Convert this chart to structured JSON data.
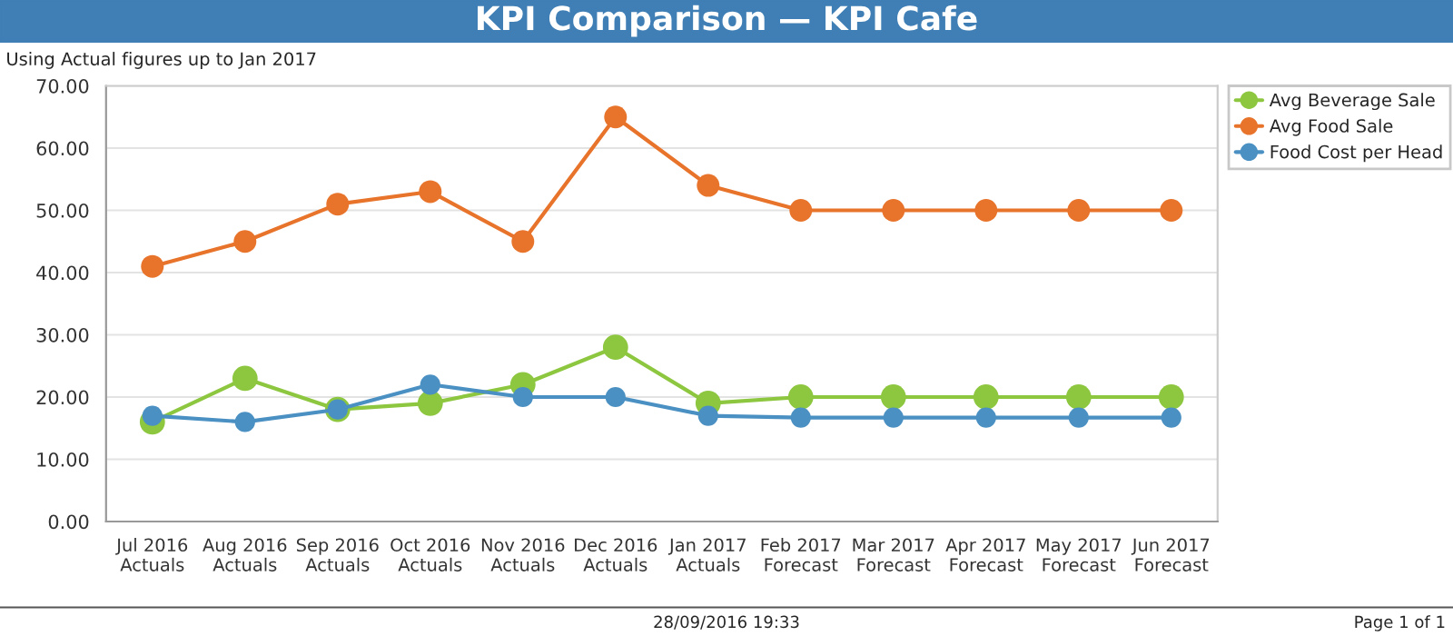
{
  "chart_data": {
    "type": "line",
    "title": "KPI Comparison — KPI Cafe",
    "subtitle": "Using Actual figures up to Jan 2017",
    "categories": [
      "Jul 2016\nActuals",
      "Aug 2016\nActuals",
      "Sep 2016\nActuals",
      "Oct 2016\nActuals",
      "Nov 2016\nActuals",
      "Dec 2016\nActuals",
      "Jan 2017\nActuals",
      "Feb 2017\nForecast",
      "Mar 2017\nForecast",
      "Apr 2017\nForecast",
      "May 2017\nForecast",
      "Jun 2017\nForecast"
    ],
    "series": [
      {
        "name": "Avg Beverage Sale",
        "color": "#8dc63f",
        "values": [
          16,
          23,
          18,
          19,
          22,
          28,
          19,
          20,
          20,
          20,
          20,
          20
        ]
      },
      {
        "name": "Avg Food Sale",
        "color": "#e8732a",
        "values": [
          41,
          45,
          51,
          53,
          45,
          65,
          54,
          50,
          50,
          50,
          50,
          50
        ]
      },
      {
        "name": "Food Cost per Head",
        "color": "#4a90c2",
        "values": [
          17,
          16,
          18,
          22,
          20,
          20,
          17,
          16.7,
          16.7,
          16.7,
          16.7,
          16.7
        ]
      }
    ],
    "ylim": [
      0,
      70
    ],
    "yticks": [
      {
        "value": 0,
        "label": "0.00"
      },
      {
        "value": 10,
        "label": "10.00"
      },
      {
        "value": 20,
        "label": "20.00"
      },
      {
        "value": 30,
        "label": "30.00"
      },
      {
        "value": 40,
        "label": "40.00"
      },
      {
        "value": 50,
        "label": "50.00"
      },
      {
        "value": 60,
        "label": "60.00"
      },
      {
        "value": 70,
        "label": "70.00"
      }
    ],
    "grid": "y",
    "legend": "top right",
    "marker": "circle",
    "line_style": "solid",
    "annotations": [
      "28/09/2016 19:33",
      "Page 1 of 1"
    ]
  }
}
